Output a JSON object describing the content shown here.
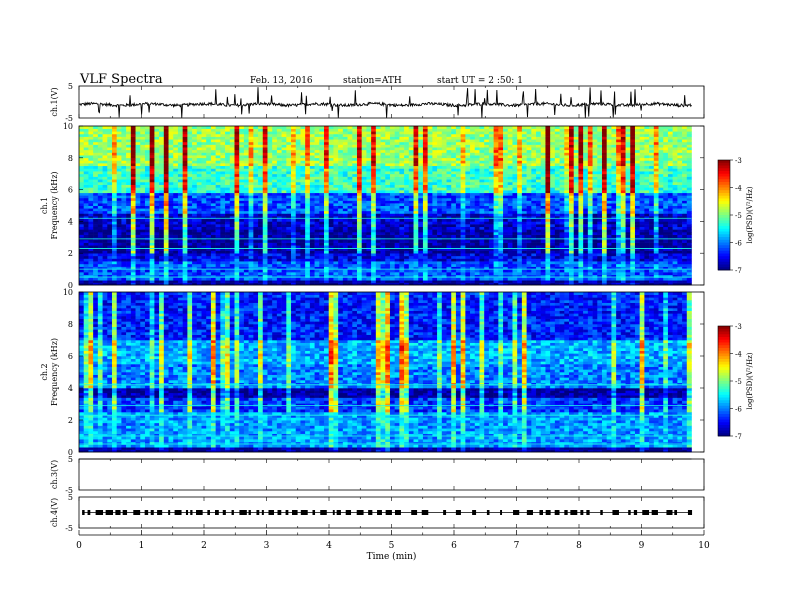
{
  "header": {
    "title": "VLF  Spectra",
    "date": "Feb. 13, 2016",
    "station": "station=ATH",
    "start": "start  UT  =   2  :50: 1"
  },
  "chart_data": [
    {
      "type": "line",
      "name": "ch1-voltage",
      "ylabel": "ch.1(V)",
      "ylim": [
        -5,
        5
      ],
      "yticks": [
        "5",
        "-5"
      ],
      "baseline": -0.8,
      "xlim": [
        0,
        10
      ]
    },
    {
      "type": "heatmap",
      "name": "ch1-spectrogram",
      "ylabel": "ch.1\nFrequency  (kHz)",
      "ylim": [
        0,
        10
      ],
      "yticks": [
        "0",
        "2",
        "4",
        "6",
        "8",
        "10"
      ],
      "xlim": [
        0,
        9.8
      ],
      "colorbar": {
        "label": "log(PSD)(V²/Hz)",
        "range": [
          -7,
          -3
        ],
        "ticks": [
          "-3",
          "-4",
          "-5",
          "-6",
          "-7"
        ]
      },
      "bands": [
        {
          "f": [
            0.0,
            0.3
          ],
          "level": -7.0
        },
        {
          "f": [
            0.3,
            1.5
          ],
          "level": -6.2
        },
        {
          "f": [
            1.5,
            2.0
          ],
          "level": -6.6
        },
        {
          "f": [
            2.0,
            3.5
          ],
          "level": -6.9
        },
        {
          "f": [
            3.5,
            4.5
          ],
          "level": -6.7
        },
        {
          "f": [
            4.5,
            5.8
          ],
          "level": -6.2
        },
        {
          "f": [
            5.8,
            7.5
          ],
          "level": -5.3
        },
        {
          "f": [
            7.5,
            10.0
          ],
          "level": -4.9
        }
      ]
    },
    {
      "type": "heatmap",
      "name": "ch2-spectrogram",
      "ylabel": "ch.2\nFrequency  (kHz)",
      "ylim": [
        0,
        10
      ],
      "yticks": [
        "0",
        "2",
        "4",
        "6",
        "8",
        "10"
      ],
      "xlim": [
        0,
        9.8
      ],
      "colorbar": {
        "label": "log(PSD)(V²/Hz)",
        "range": [
          -7,
          -3
        ],
        "ticks": [
          "-3",
          "-4",
          "-5",
          "-6",
          "-7"
        ]
      },
      "bands": [
        {
          "f": [
            0.0,
            0.3
          ],
          "level": -7.0
        },
        {
          "f": [
            0.3,
            2.5
          ],
          "level": -5.9
        },
        {
          "f": [
            2.5,
            3.4
          ],
          "level": -6.3
        },
        {
          "f": [
            3.4,
            4.0
          ],
          "level": -6.9
        },
        {
          "f": [
            4.0,
            5.5
          ],
          "level": -6.0
        },
        {
          "f": [
            5.5,
            7.0
          ],
          "level": -5.8
        },
        {
          "f": [
            7.0,
            10.0
          ],
          "level": -6.4
        }
      ]
    },
    {
      "type": "line",
      "name": "ch3-voltage",
      "ylabel": "ch.3(V)",
      "ylim": [
        -5,
        5
      ],
      "yticks": [
        "5",
        "-5"
      ],
      "baseline": 5,
      "xlim": [
        0,
        10
      ]
    },
    {
      "type": "line",
      "name": "ch4-voltage",
      "ylabel": "ch.4(V)",
      "ylim": [
        -5,
        5
      ],
      "yticks": [
        "5",
        "-5"
      ],
      "baseline": 0,
      "xlim": [
        0,
        10
      ]
    }
  ],
  "xaxis": {
    "label": "Time  (min)",
    "ticks": [
      "0",
      "1",
      "2",
      "3",
      "4",
      "5",
      "6",
      "7",
      "8",
      "9",
      "10"
    ],
    "range": [
      0,
      10
    ]
  }
}
